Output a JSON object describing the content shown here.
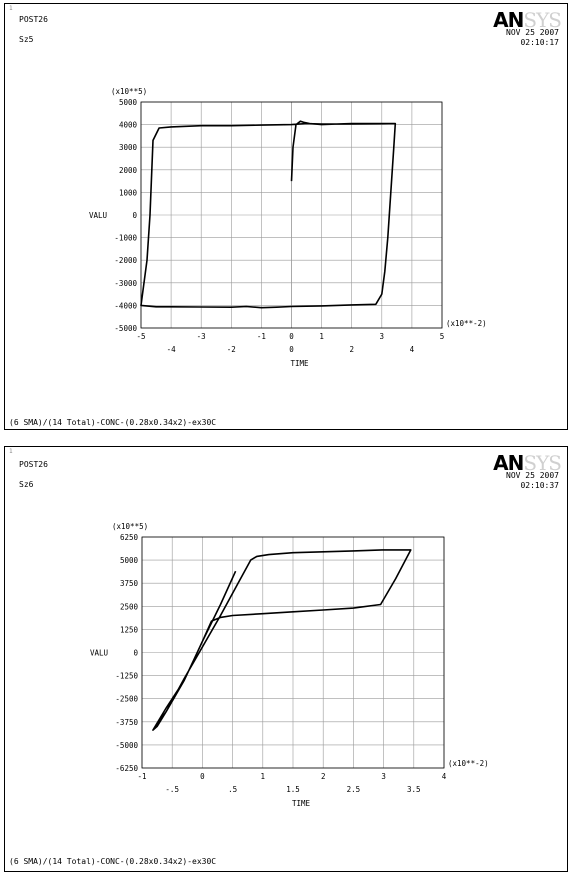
{
  "charts": [
    {
      "corner_index": "1",
      "title_top": "POST26",
      "title_sub": "Sz5",
      "logo": {
        "bold": "AN",
        "gray": "SYS"
      },
      "date": "NOV 25 2007",
      "time": "02:10:17",
      "footer": "(6 SMA)/(14 Total)-CONC-(0.28x0.34x2)-ex30C"
    },
    {
      "corner_index": "1",
      "title_top": "POST26",
      "title_sub": "Sz6",
      "logo": {
        "bold": "AN",
        "gray": "SYS"
      },
      "date": "NOV 25 2007",
      "time": "02:10:37",
      "footer": "(6 SMA)/(14 Total)-CONC-(0.28x0.34x2)-ex30C"
    }
  ],
  "chart_data": [
    {
      "type": "line",
      "xlabel": "TIME",
      "ylabel": "VALU",
      "x_multiplier": "(x10**-2)",
      "y_multiplier": "(x10**5)",
      "xlim": [
        -5,
        5
      ],
      "ylim": [
        -5000,
        5000
      ],
      "x_ticks_upper": [
        "-5",
        "-3",
        "-1",
        "0",
        "1",
        "3",
        "5"
      ],
      "x_ticks_upper_values": [
        -5,
        -3,
        -1,
        0,
        1,
        3,
        5
      ],
      "x_ticks_lower": [
        "-4",
        "-2",
        "0",
        "2",
        "4"
      ],
      "x_ticks_lower_values": [
        -4,
        -2,
        0,
        2,
        4
      ],
      "y_ticks": [
        "5000",
        "4000",
        "3000",
        "2000",
        "1000",
        "0",
        "-1000",
        "-2000",
        "-3000",
        "-4000",
        "-5000"
      ],
      "y_tick_values": [
        5000,
        4000,
        3000,
        2000,
        1000,
        0,
        -1000,
        -2000,
        -3000,
        -4000,
        -5000
      ],
      "grid": true,
      "series": [
        {
          "x": [
            0.0,
            0.05,
            0.15,
            0.3,
            0.4,
            0.6,
            1.0,
            2.0,
            3.0,
            3.45,
            3.4,
            3.3,
            3.2,
            3.1,
            3.0,
            2.8,
            2.0,
            1.0,
            0.0,
            -0.5,
            -1.0,
            -1.5,
            -2.0,
            -3.0,
            -4.0,
            -4.5,
            -5.0,
            -4.8,
            -4.7,
            -4.6,
            -4.4,
            -4.0,
            -3.0,
            -2.0,
            -1.0,
            0.0,
            0.5,
            1.0,
            2.0,
            3.0,
            3.45
          ],
          "y": [
            1500,
            3000,
            4000,
            4150,
            4100,
            4050,
            4000,
            4050,
            4050,
            4050,
            3000,
            1000,
            -1000,
            -2500,
            -3500,
            -3950,
            -3980,
            -4020,
            -4050,
            -4080,
            -4100,
            -4050,
            -4080,
            -4070,
            -4060,
            -4060,
            -4000,
            -2000,
            0,
            3300,
            3850,
            3900,
            3950,
            3950,
            3980,
            4000,
            4050,
            4020,
            4030,
            4040,
            4050
          ]
        }
      ]
    },
    {
      "type": "line",
      "xlabel": "TIME",
      "ylabel": "VALU",
      "x_multiplier": "(x10**-2)",
      "y_multiplier": "(x10**5)",
      "xlim": [
        -1,
        4
      ],
      "ylim": [
        -6250,
        6250
      ],
      "x_ticks_upper": [
        "-1",
        "0",
        "1",
        "2",
        "3",
        "4"
      ],
      "x_ticks_upper_values": [
        -1,
        0,
        1,
        2,
        3,
        4
      ],
      "x_ticks_lower": [
        "-.5",
        ".5",
        "1.5",
        "2.5",
        "3.5"
      ],
      "x_ticks_lower_values": [
        -0.5,
        0.5,
        1.5,
        2.5,
        3.5
      ],
      "y_ticks": [
        "6250",
        "5000",
        "3750",
        "2500",
        "1250",
        "0",
        "-1250",
        "-2500",
        "-3750",
        "-5000",
        "-6250"
      ],
      "y_tick_values": [
        6250,
        5000,
        3750,
        2500,
        1250,
        0,
        -1250,
        -2500,
        -3750,
        -5000,
        -6250
      ],
      "grid": true,
      "series": [
        {
          "x": [
            0.55,
            0.3,
            0.0,
            -0.3,
            -0.6,
            -0.82,
            -0.75,
            -0.6,
            -0.3,
            0.0,
            0.3,
            0.6,
            0.8,
            0.9,
            1.1,
            1.5,
            2.0,
            2.5,
            3.0,
            3.45,
            3.2,
            2.95,
            2.5,
            2.0,
            1.5,
            1.0,
            0.5,
            0.3,
            0.15,
            0.0,
            -0.3,
            -0.6,
            -0.8
          ],
          "y": [
            4400,
            2600,
            600,
            -1500,
            -3000,
            -4200,
            -4000,
            -3200,
            -1400,
            300,
            2000,
            3800,
            5000,
            5200,
            5300,
            5400,
            5450,
            5500,
            5550,
            5550,
            4000,
            2600,
            2400,
            2300,
            2200,
            2100,
            2000,
            1900,
            1700,
            600,
            -1500,
            -3200,
            -4100
          ]
        }
      ]
    }
  ]
}
